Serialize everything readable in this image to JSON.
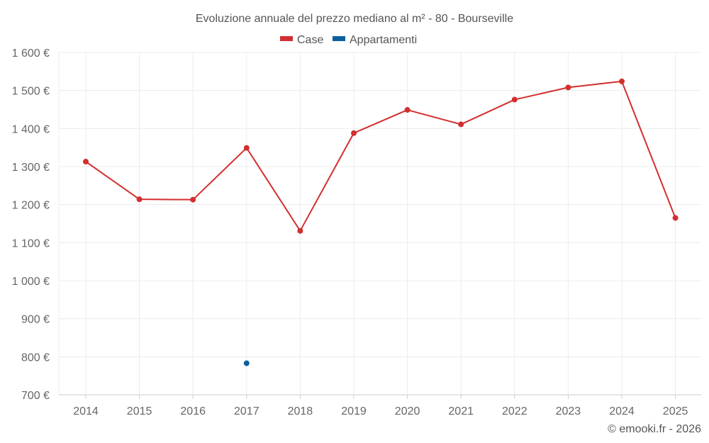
{
  "chart_data": {
    "type": "line",
    "title": "Evoluzione annuale del prezzo mediano al m² - 80 - Bourseville",
    "categories": [
      "2014",
      "2015",
      "2016",
      "2017",
      "2018",
      "2019",
      "2020",
      "2021",
      "2022",
      "2023",
      "2024",
      "2025"
    ],
    "series": [
      {
        "name": "Case",
        "color": "#d32f2f",
        "values": [
          1313,
          1214,
          1213,
          1349,
          1131,
          1388,
          1449,
          1411,
          1476,
          1508,
          1524,
          1165
        ]
      },
      {
        "name": "Appartamenti",
        "color": "#0b5f9e",
        "values": [
          null,
          null,
          null,
          783,
          null,
          null,
          null,
          null,
          null,
          null,
          null,
          null
        ]
      }
    ],
    "ylim": [
      700,
      1600
    ],
    "yticks": [
      700,
      800,
      900,
      1000,
      1100,
      1200,
      1300,
      1400,
      1500,
      1600
    ],
    "ytick_labels": [
      "700 €",
      "800 €",
      "900 €",
      "1 000 €",
      "1 100 €",
      "1 200 €",
      "1 300 €",
      "1 400 €",
      "1 500 €",
      "1 600 €"
    ],
    "xlabel": "",
    "ylabel": "",
    "grid": true,
    "legend_position": "top-center"
  },
  "credit": "© emooki.fr - 2026"
}
